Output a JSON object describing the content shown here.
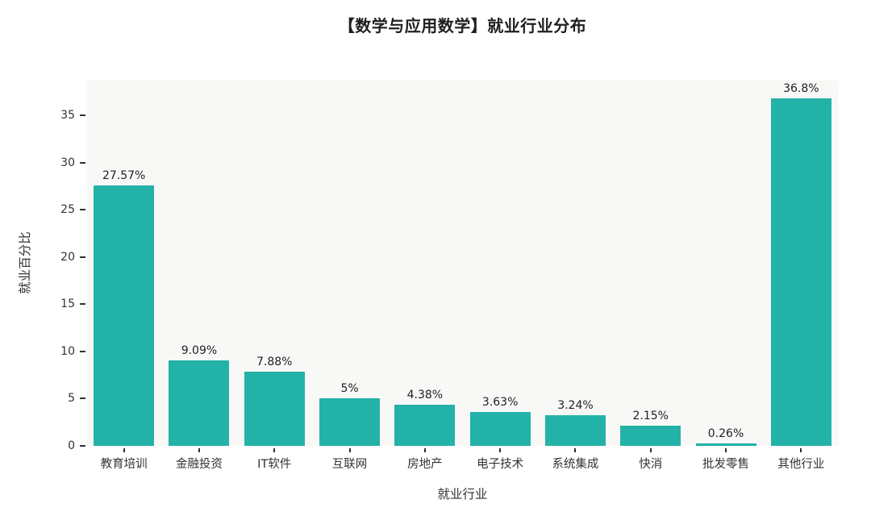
{
  "chart_data": {
    "type": "bar",
    "title": "【数学与应用数学】就业行业分布",
    "xlabel": "就业行业",
    "ylabel": "就业百分比",
    "categories": [
      "教育培训",
      "金融投资",
      "IT软件",
      "互联网",
      "房地产",
      "电子技术",
      "系统集成",
      "快消",
      "批发零售",
      "其他行业"
    ],
    "values": [
      27.57,
      9.09,
      7.88,
      5,
      4.38,
      3.63,
      3.24,
      2.15,
      0.26,
      36.8
    ],
    "value_labels": [
      "27.57%",
      "9.09%",
      "7.88%",
      "5%",
      "4.38%",
      "3.63%",
      "3.24%",
      "2.15%",
      "0.26%",
      "36.8%"
    ],
    "yticks": [
      0,
      5,
      10,
      15,
      20,
      25,
      30,
      35
    ],
    "ylim": [
      0,
      38.7
    ],
    "grid": false,
    "legend": null,
    "bar_color": "#22b2a8",
    "plot_background": "#f8f8f6",
    "text_color": "#333333"
  }
}
